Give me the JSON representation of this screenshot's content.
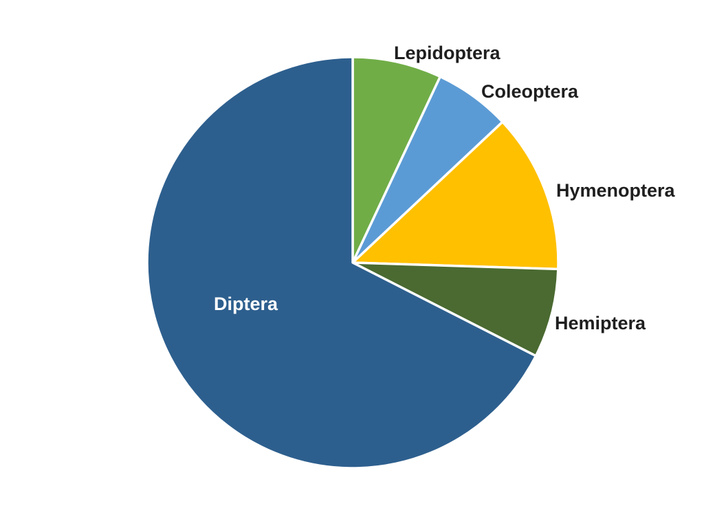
{
  "chart_data": {
    "type": "pie",
    "title": "",
    "start_angle_deg": 0,
    "direction": "clockwise",
    "background_color": "#FFFFFF",
    "separator_color": "#FFFFFF",
    "label_color": "#1F1F1F",
    "inside_label_color": "#FFFFFF",
    "categories": [
      "Lepidoptera",
      "Coleoptera",
      "Hymenoptera",
      "Hemiptera",
      "Diptera"
    ],
    "values": [
      7,
      6,
      12.5,
      7,
      67.5
    ],
    "slices": [
      {
        "label": "Lepidoptera",
        "value": 7,
        "color": "#70AD47",
        "label_placement": "outside"
      },
      {
        "label": "Coleoptera",
        "value": 6,
        "color": "#5B9BD5",
        "label_placement": "outside"
      },
      {
        "label": "Hymenoptera",
        "value": 12.5,
        "color": "#FFC000",
        "label_placement": "outside"
      },
      {
        "label": "Hemiptera",
        "value": 7,
        "color": "#4A6A31",
        "label_placement": "outside"
      },
      {
        "label": "Diptera",
        "value": 67.5,
        "color": "#2D5F8E",
        "label_placement": "inside"
      }
    ],
    "legend": "none",
    "units": "percent"
  }
}
